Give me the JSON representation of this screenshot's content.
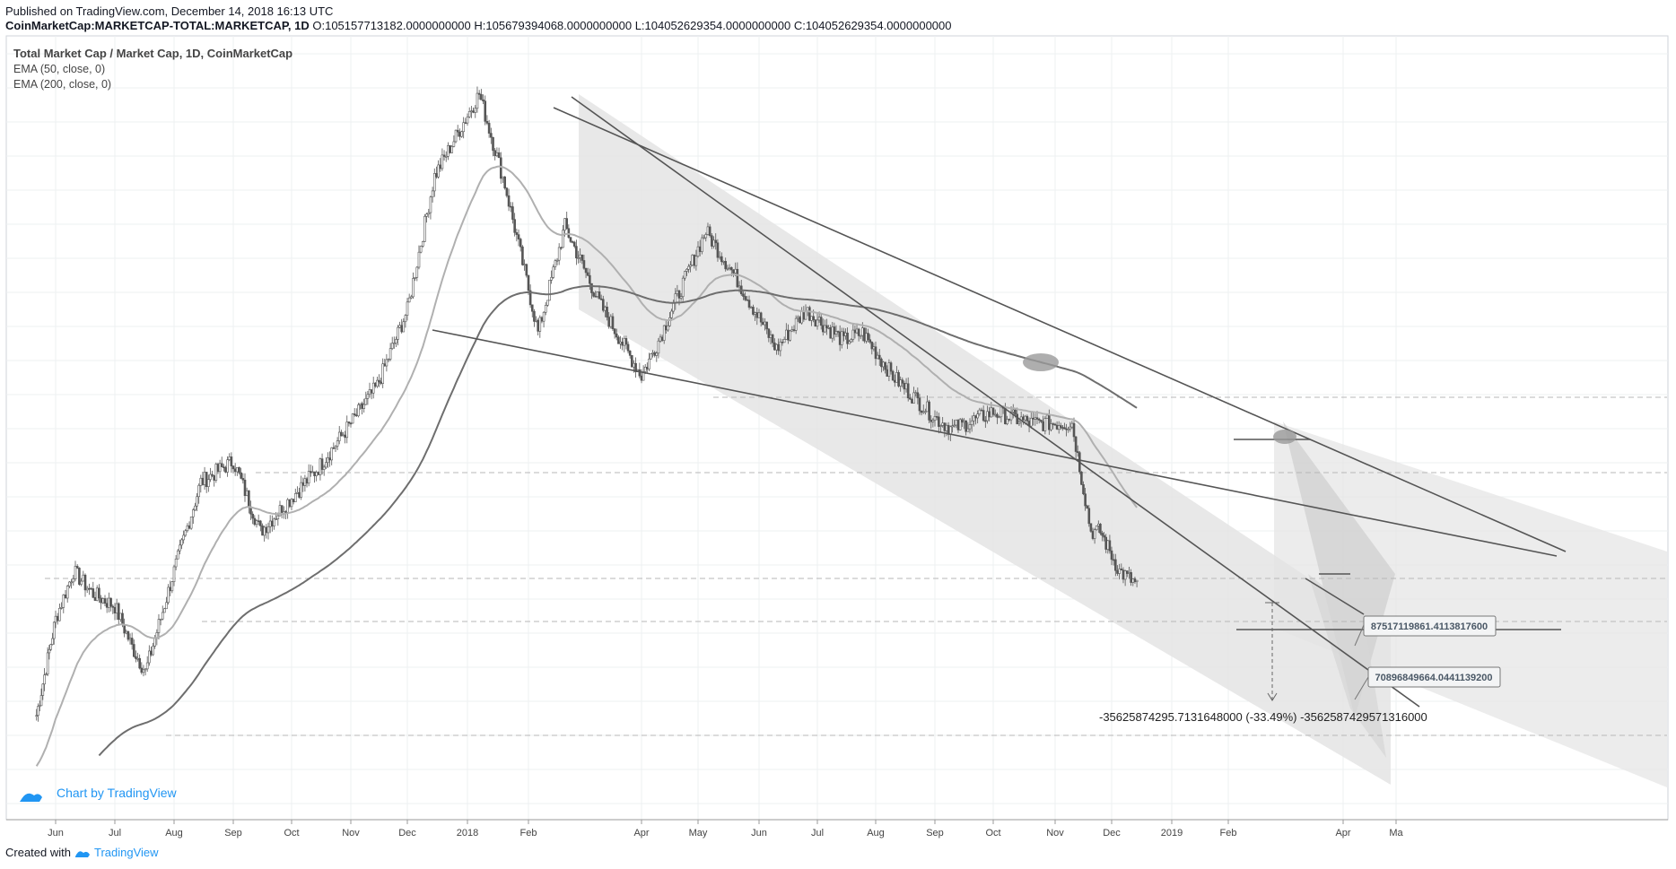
{
  "header": {
    "published": "Published on TradingView.com, December 14, 2018 16:13 UTC",
    "symbol": "CoinMarketCap:MARKETCAP-TOTAL:MARKETCAP, 1D",
    "ohlc": {
      "o_label": "O:",
      "o": "105157713182.0000000000",
      "h_label": "H:",
      "h": "105679394068.0000000000",
      "l_label": "L:",
      "l": "104052629354.0000000000",
      "c_label": "C:",
      "c": "104052629354.0000000000"
    }
  },
  "legend": {
    "title": "Total Market Cap / Market Cap, 1D, CoinMarketCap",
    "ema50": "EMA (50, close, 0)",
    "ema200": "EMA (200, close, 0)"
  },
  "watermark": "Chart by TradingView",
  "footer": {
    "created_with": "Created with",
    "brand": "TradingView"
  },
  "colors": {
    "candle": "#555555",
    "ema50": "#b0b0b0",
    "ema200": "#6e6e6e",
    "channel": "#d8d8d8",
    "trendline": "#555555",
    "grid": "#eef0f2",
    "accent": "#2196f3"
  },
  "chart_data": {
    "type": "candlestick",
    "title": "Total Market Cap / Market Cap, 1D, CoinMarketCap",
    "x_tick_labels": [
      "Jun",
      "Jul",
      "Aug",
      "Sep",
      "Oct",
      "Nov",
      "Dec",
      "2018",
      "Feb",
      "Apr",
      "May",
      "Jun",
      "Jul",
      "Aug",
      "Sep",
      "Oct",
      "Nov",
      "Dec",
      "2019",
      "Feb",
      "Apr",
      "Ma"
    ],
    "y_axis": "log scale, labels not shown",
    "series": [
      {
        "name": "Total Market Cap (approx. weekly closes, USD billions)",
        "dates": [
          "2017-05-20",
          "2017-06-01",
          "2017-06-10",
          "2017-06-20",
          "2017-07-01",
          "2017-07-10",
          "2017-07-17",
          "2017-08-01",
          "2017-08-15",
          "2017-09-01",
          "2017-09-15",
          "2017-10-01",
          "2017-10-15",
          "2017-11-01",
          "2017-11-15",
          "2017-12-01",
          "2017-12-15",
          "2018-01-07",
          "2018-01-20",
          "2018-02-06",
          "2018-02-20",
          "2018-03-10",
          "2018-04-01",
          "2018-04-10",
          "2018-05-05",
          "2018-05-20",
          "2018-06-10",
          "2018-06-25",
          "2018-07-15",
          "2018-07-25",
          "2018-08-10",
          "2018-09-01",
          "2018-09-10",
          "2018-10-01",
          "2018-10-20",
          "2018-11-10",
          "2018-11-20",
          "2018-11-25",
          "2018-12-05",
          "2018-12-14"
        ],
        "values": [
          60,
          90,
          110,
          100,
          95,
          80,
          72,
          110,
          160,
          175,
          130,
          150,
          170,
          205,
          240,
          330,
          580,
          820,
          560,
          300,
          470,
          340,
          250,
          290,
          460,
          380,
          280,
          330,
          290,
          300,
          250,
          210,
          200,
          215,
          205,
          205,
          130,
          130,
          110,
          104
        ]
      },
      {
        "name": "EMA (50, close, 0)",
        "note": "rendered as smoothed line",
        "values": []
      },
      {
        "name": "EMA (200, close, 0)",
        "note": "rendered as smoothed line",
        "values": []
      }
    ],
    "annotations": [
      {
        "label": "87517119861.4113817600"
      },
      {
        "label": "70896849664.0441139200"
      },
      {
        "label": "-35625874295.7131648000 (-33.49%) -3562587429571316000"
      }
    ]
  }
}
